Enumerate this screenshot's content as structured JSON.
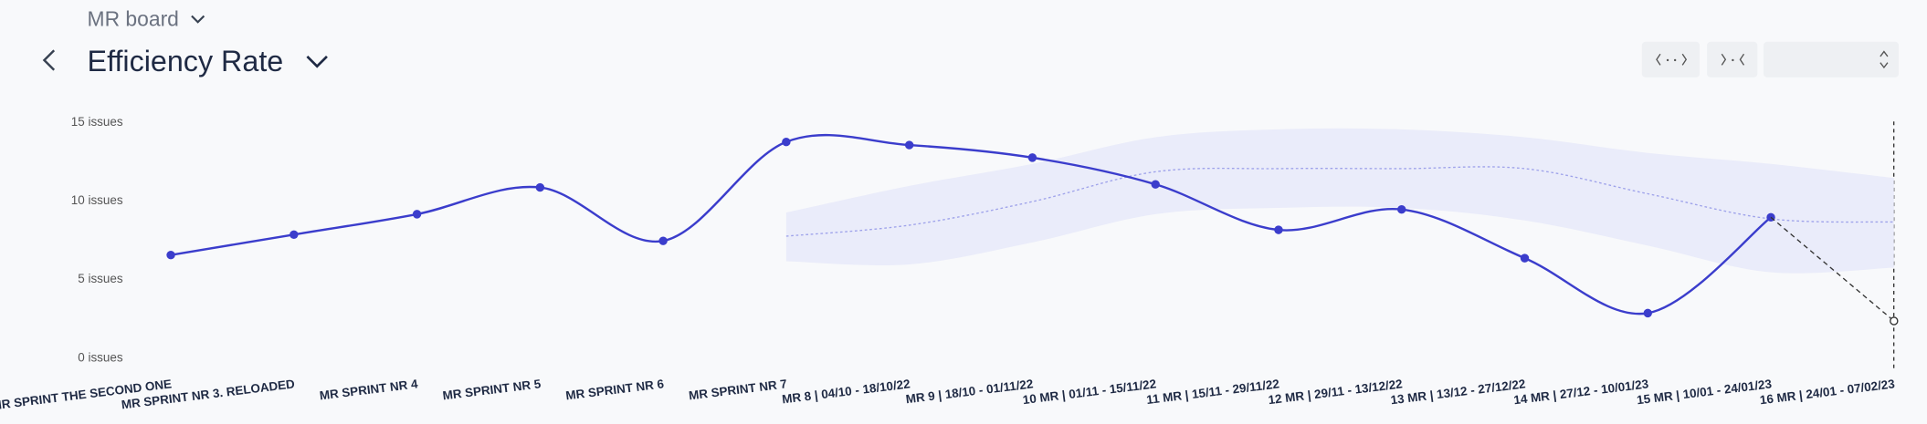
{
  "header": {
    "breadcrumb": "MR board",
    "title": "Efficiency Rate"
  },
  "chart_data": {
    "type": "line",
    "categories": [
      "MR SPRINT THE SECOND ONE",
      "MR SPRINT NR 3. RELOADED",
      "MR SPRINT NR 4",
      "MR SPRINT NR 5",
      "MR SPRINT NR 6",
      "MR SPRINT NR 7",
      "MR 8 | 04/10 - 18/10/22",
      "MR 9 | 18/10 - 01/11/22",
      "10 MR | 01/11 - 15/11/22",
      "11 MR | 15/11 - 29/11/22",
      "12 MR | 29/11 - 13/12/22",
      "13 MR | 13/12 - 27/12/22",
      "14 MR | 27/12 - 10/01/23",
      "15 MR | 10/01 - 24/01/23",
      "16 MR | 24/01 - 07/02/23"
    ],
    "series": [
      {
        "color": "#3b3dcc",
        "values": [
          6.5,
          7.8,
          9.1,
          10.8,
          7.4,
          13.7,
          13.5,
          12.7,
          11.0,
          8.1,
          9.4,
          6.3,
          2.8,
          8.9,
          null
        ]
      },
      {
        "color": "#333333",
        "dashed": true,
        "values": [
          null,
          null,
          null,
          null,
          null,
          null,
          null,
          null,
          null,
          null,
          null,
          null,
          null,
          8.9,
          2.3
        ]
      }
    ],
    "forecast": {
      "color": "#eaecfa",
      "mean_color": "#9ea2ea",
      "mean": [
        null,
        null,
        null,
        null,
        null,
        7.7,
        8.4,
        9.9,
        11.8,
        12.0,
        12.0,
        12.0,
        10.4,
        8.8,
        8.6
      ],
      "upper": [
        null,
        null,
        null,
        null,
        null,
        9.2,
        10.9,
        12.3,
        14.0,
        14.5,
        14.5,
        14.0,
        13.0,
        12.3,
        11.4
      ],
      "lower": [
        null,
        null,
        null,
        null,
        null,
        6.1,
        5.9,
        7.3,
        9.1,
        9.5,
        9.5,
        8.7,
        7.1,
        5.4,
        5.7
      ]
    },
    "ylim": [
      0,
      15
    ],
    "yticks": [
      {
        "value": 0,
        "label": "0 issues"
      },
      {
        "value": 5,
        "label": "5 issues"
      },
      {
        "value": 10,
        "label": "10 issues"
      },
      {
        "value": 15,
        "label": "15 issues"
      }
    ],
    "grid": false
  }
}
